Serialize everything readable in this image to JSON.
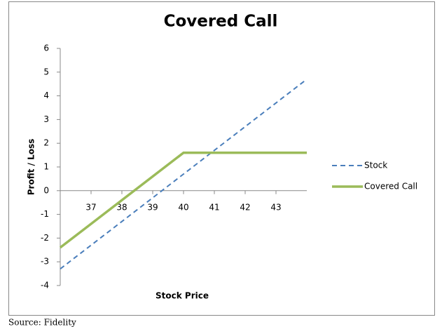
{
  "chart_data": {
    "type": "line",
    "title": "Covered Call",
    "x_label": "Stock Price",
    "y_label": "Profit / Loss",
    "x": [
      36,
      40,
      44
    ],
    "series": [
      {
        "name": "Stock",
        "color": "#4a7ebb",
        "dashed": true,
        "values": [
          -3.3,
          0.7,
          4.7
        ]
      },
      {
        "name": "Covered Call",
        "color": "#9bbb59",
        "dashed": false,
        "values": [
          -2.4,
          1.6,
          1.6
        ]
      }
    ],
    "xlim": [
      36,
      44
    ],
    "xticks": [
      37,
      38,
      39,
      40,
      41,
      42,
      43
    ],
    "ylim": [
      -4,
      6
    ],
    "yticks": [
      -4,
      -3,
      -2,
      -1,
      0,
      1,
      2,
      3,
      4,
      5,
      6
    ],
    "grid": false,
    "legend": "right",
    "source": "Source: Fidelity"
  }
}
